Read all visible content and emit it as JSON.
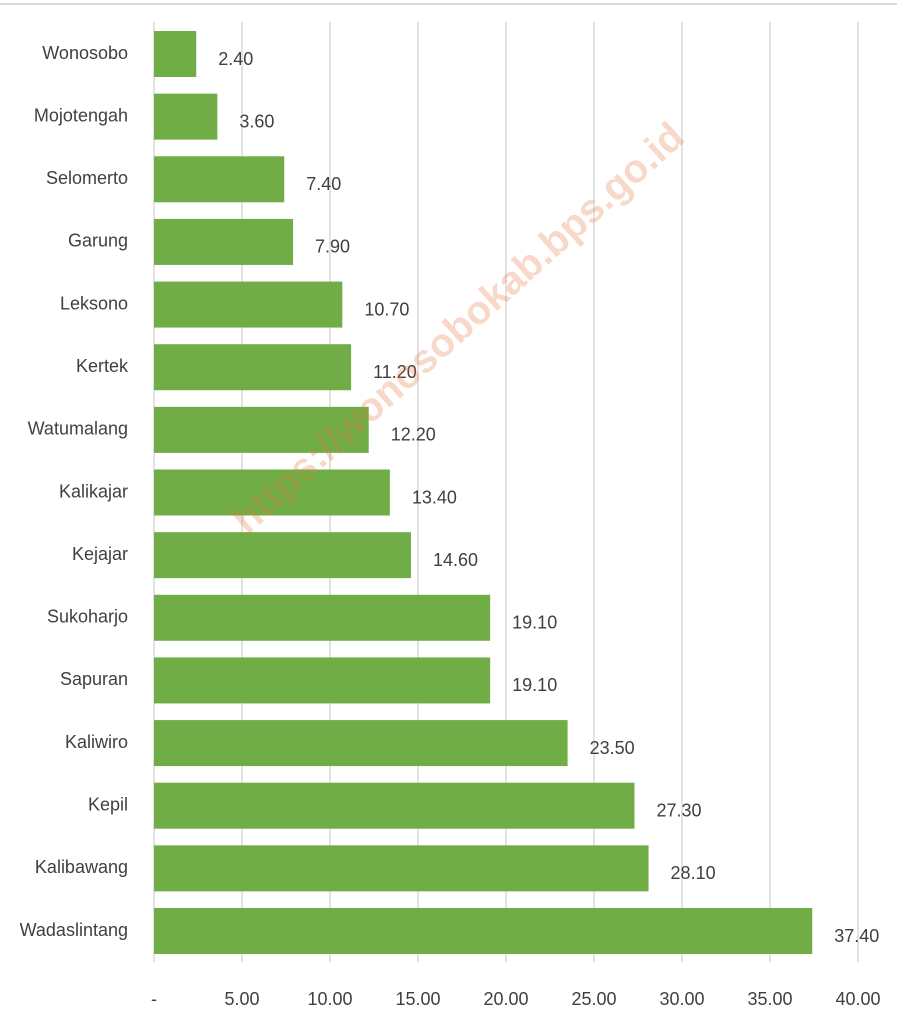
{
  "chart_data": {
    "type": "bar",
    "orientation": "horizontal",
    "watermark": "https://wonosobokab.bps.go.id",
    "categories": [
      "Wonosobo",
      "Mojotengah",
      "Selomerto",
      "Garung",
      "Leksono",
      "Kertek",
      "Watumalang",
      "Kalikajar",
      "Kejajar",
      "Sukoharjo",
      "Sapuran",
      "Kaliwiro",
      "Kepil",
      "Kalibawang",
      "Wadaslintang"
    ],
    "values": [
      2.4,
      3.6,
      7.4,
      7.9,
      10.7,
      11.2,
      12.2,
      13.4,
      14.6,
      19.1,
      19.1,
      23.5,
      27.3,
      28.1,
      37.4
    ],
    "value_labels": [
      "2.40",
      "3.60",
      "7.40",
      "7.90",
      "10.70",
      "11.20",
      "12.20",
      "13.40",
      "14.60",
      "19.10",
      "19.10",
      "23.50",
      "27.30",
      "28.10",
      "37.40"
    ],
    "color": "#70ad47",
    "xlim": [
      0,
      40
    ],
    "xticks": [
      {
        "value": 0,
        "label": "-"
      },
      {
        "value": 5,
        "label": "5.00"
      },
      {
        "value": 10,
        "label": "10.00"
      },
      {
        "value": 15,
        "label": "15.00"
      },
      {
        "value": 20,
        "label": "20.00"
      },
      {
        "value": 25,
        "label": "25.00"
      },
      {
        "value": 30,
        "label": "30.00"
      },
      {
        "value": 35,
        "label": "35.00"
      },
      {
        "value": 40,
        "label": "40.00"
      }
    ],
    "grid": true
  }
}
